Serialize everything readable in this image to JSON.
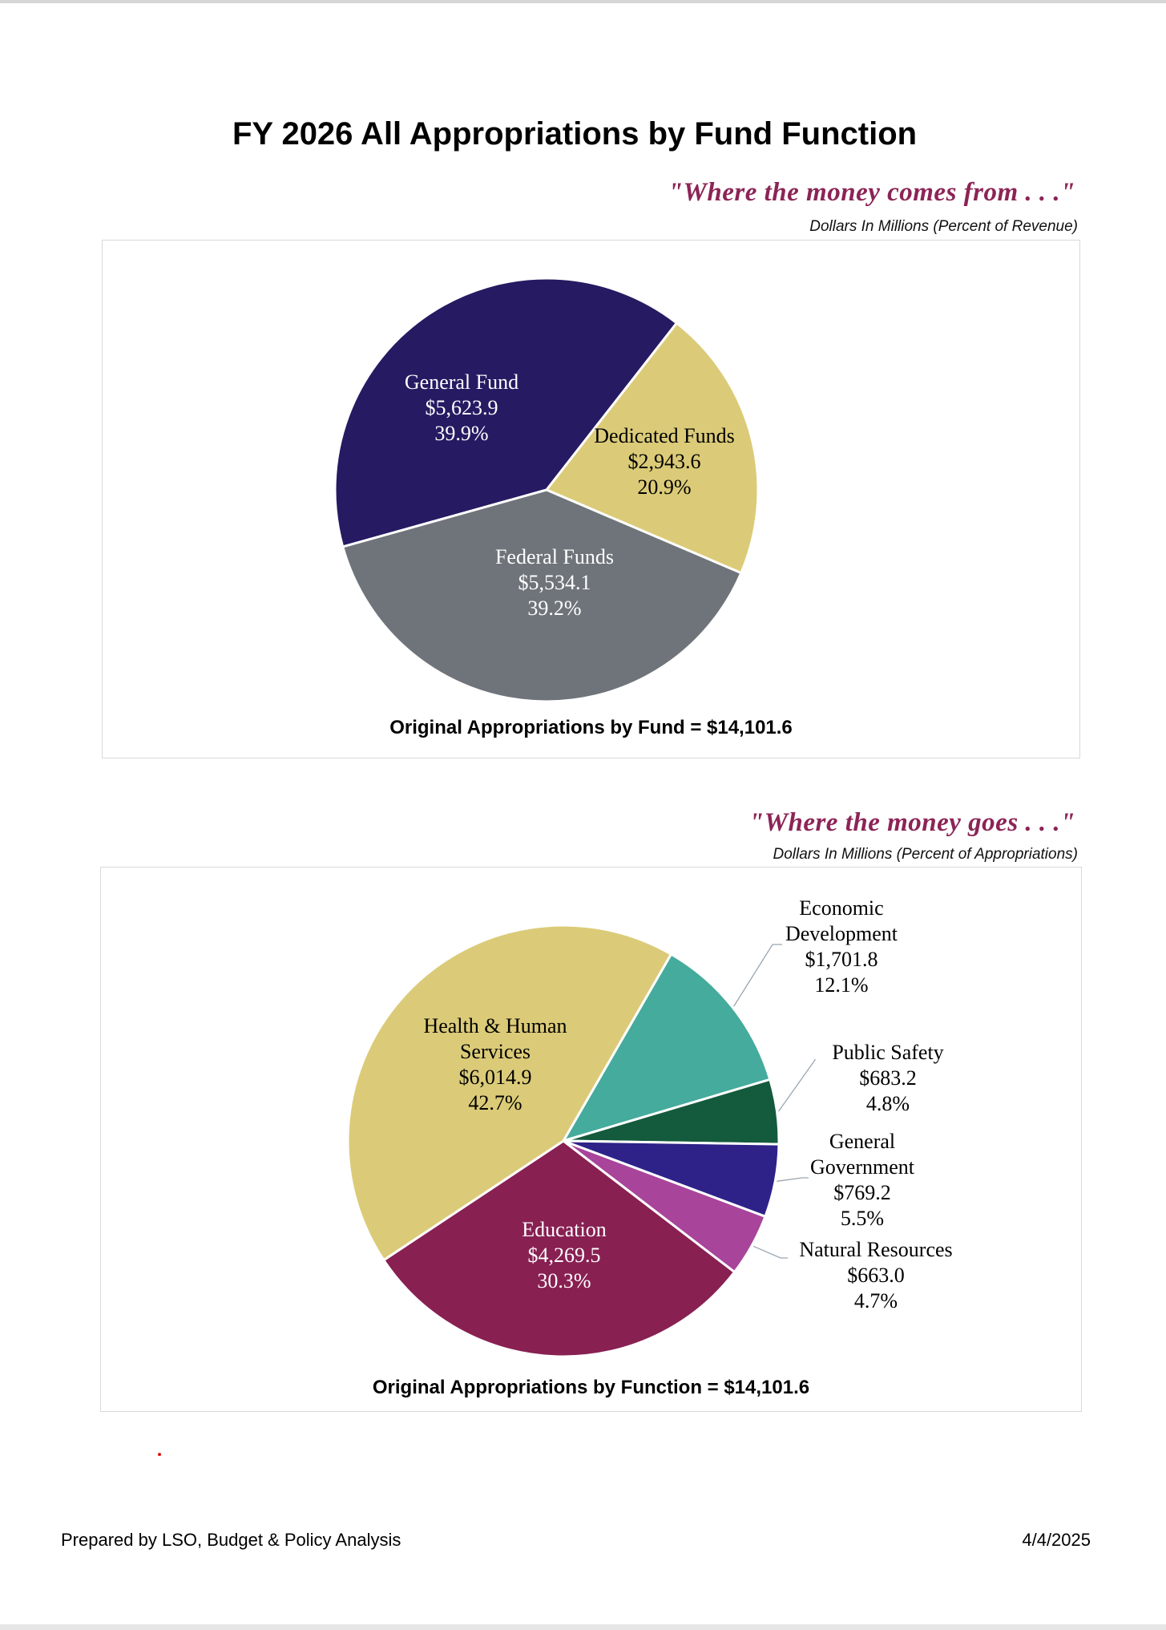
{
  "title": "FY 2026 All Appropriations by Fund Function",
  "footer": {
    "prepared_by": "Prepared by LSO, Budget & Policy Analysis",
    "date": "4/4/2025"
  },
  "chart_data": [
    {
      "type": "pie",
      "subtitle": "\"Where the money comes from . . .\"",
      "note": "Dollars In Millions (Percent of Revenue)",
      "total_label": "Original Appropriations by Fund = $14,101.6",
      "slices": [
        {
          "name": "General Fund",
          "value": 5623.9,
          "value_label": "$5,623.9",
          "percent_label": "39.9%",
          "color": "#261a62",
          "text_color": "#ffffff"
        },
        {
          "name": "Dedicated Funds",
          "value": 2943.6,
          "value_label": "$2,943.6",
          "percent_label": "20.9%",
          "color": "#dbcb78",
          "text_color": "#000000"
        },
        {
          "name": "Federal Funds",
          "value": 5534.1,
          "value_label": "$5,534.1",
          "percent_label": "39.2%",
          "color": "#6f747a",
          "text_color": "#ffffff"
        }
      ]
    },
    {
      "type": "pie",
      "subtitle": "\"Where the money goes . . .\"",
      "note": "Dollars In Millions (Percent of Appropriations)",
      "total_label": "Original Appropriations by Function = $14,101.6",
      "slices": [
        {
          "name": "Economic Development",
          "value": 1701.8,
          "value_label": "$1,701.8",
          "percent_label": "12.1%",
          "color": "#45ab9c",
          "text_color": "#000000"
        },
        {
          "name": "Public Safety",
          "value": 683.2,
          "value_label": "$683.2",
          "percent_label": "4.8%",
          "color": "#145a3d",
          "text_color": "#000000"
        },
        {
          "name": "General Government",
          "value": 769.2,
          "value_label": "$769.2",
          "percent_label": "5.5%",
          "color": "#2e2288",
          "text_color": "#000000"
        },
        {
          "name": "Natural Resources",
          "value": 663.0,
          "value_label": "$663.0",
          "percent_label": "4.7%",
          "color": "#a8449a",
          "text_color": "#000000"
        },
        {
          "name": "Education",
          "value": 4269.5,
          "value_label": "$4,269.5",
          "percent_label": "30.3%",
          "color": "#882052",
          "text_color": "#ffffff"
        },
        {
          "name": "Health & Human Services",
          "value": 6014.9,
          "value_label": "$6,014.9",
          "percent_label": "42.7%",
          "color": "#dbcb78",
          "text_color": "#000000"
        }
      ]
    }
  ]
}
